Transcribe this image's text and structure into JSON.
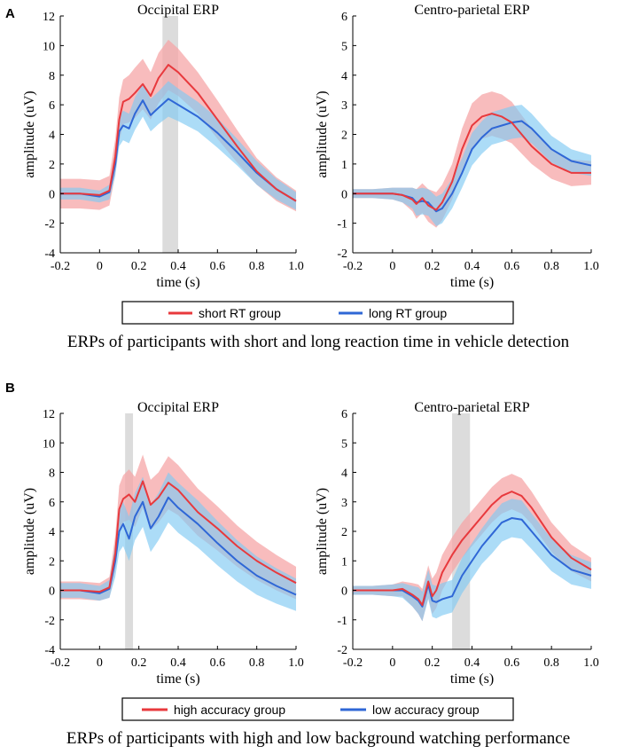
{
  "panels": [
    {
      "label": "A",
      "caption": "ERPs of participants with short and long reaction time in vehicle detection",
      "legend": [
        "short RT group",
        "long RT group"
      ],
      "colors": {
        "series1": "#e8393d",
        "band1": "#f6a5a7",
        "series2": "#2f67d6",
        "band2": "#7fcaf3",
        "highlight": "#dcdcdc"
      }
    },
    {
      "label": "B",
      "caption": "ERPs of participants with high and low background watching performance",
      "legend": [
        "high accuracy group",
        "low accuracy group"
      ],
      "colors": {
        "series1": "#e8393d",
        "band1": "#f6a5a7",
        "series2": "#2f67d6",
        "band2": "#7fcaf3",
        "highlight": "#dcdcdc"
      }
    }
  ],
  "chart_data": [
    {
      "type": "line",
      "title": "Occipital ERP",
      "xlabel": "time (s)",
      "ylabel": "amplitude (uV)",
      "xlim": [
        -0.2,
        1.0
      ],
      "ylim": [
        -4,
        12
      ],
      "xticks": [
        "-0.2",
        "0",
        "0.2",
        "0.4",
        "0.6",
        "0.8",
        "1.0"
      ],
      "yticks": [
        "-4",
        "-2",
        "0",
        "2",
        "4",
        "6",
        "8",
        "10",
        "12"
      ],
      "highlight": [
        0.32,
        0.4
      ],
      "x": [
        -0.2,
        -0.1,
        0,
        0.05,
        0.08,
        0.1,
        0.12,
        0.15,
        0.18,
        0.22,
        0.26,
        0.3,
        0.35,
        0.4,
        0.5,
        0.6,
        0.7,
        0.8,
        0.9,
        1.0
      ],
      "series": [
        {
          "name": "short RT group",
          "values": [
            0,
            0,
            -0.1,
            0.2,
            2.5,
            5.0,
            6.2,
            6.4,
            6.8,
            7.4,
            6.6,
            7.8,
            8.7,
            8.2,
            6.8,
            5.0,
            3.2,
            1.5,
            0.3,
            -0.5
          ],
          "band": [
            1.0,
            1.0,
            1.0,
            1.0,
            1.2,
            1.5,
            1.5,
            1.6,
            1.7,
            1.7,
            1.6,
            1.7,
            1.7,
            1.6,
            1.4,
            1.3,
            1.1,
            0.9,
            0.8,
            0.7
          ]
        },
        {
          "name": "long RT group",
          "values": [
            0,
            0,
            -0.2,
            0.1,
            2.0,
            4.2,
            4.6,
            4.4,
            5.4,
            6.3,
            5.3,
            5.8,
            6.4,
            6.0,
            5.2,
            4.1,
            2.8,
            1.4,
            0.3,
            -0.5
          ],
          "band": [
            0.4,
            0.4,
            0.4,
            0.5,
            0.8,
            1.0,
            1.0,
            1.0,
            1.1,
            1.1,
            1.1,
            1.1,
            1.2,
            1.1,
            1.0,
            1.0,
            0.9,
            0.8,
            0.7,
            0.6
          ]
        }
      ]
    },
    {
      "type": "line",
      "title": "Centro-parietal ERP",
      "xlabel": "time (s)",
      "ylabel": "amplitude (uV)",
      "xlim": [
        -0.2,
        1.0
      ],
      "ylim": [
        -2,
        6
      ],
      "xticks": [
        "-0.2",
        "0",
        "0.2",
        "0.4",
        "0.6",
        "0.8",
        "1.0"
      ],
      "yticks": [
        "-2",
        "-1",
        "0",
        "1",
        "2",
        "3",
        "4",
        "5",
        "6"
      ],
      "highlight": null,
      "x": [
        -0.2,
        -0.1,
        0,
        0.05,
        0.1,
        0.12,
        0.15,
        0.18,
        0.22,
        0.25,
        0.3,
        0.35,
        0.4,
        0.45,
        0.5,
        0.55,
        0.6,
        0.65,
        0.7,
        0.8,
        0.9,
        1.0
      ],
      "series": [
        {
          "name": "short RT group",
          "values": [
            0,
            0,
            0,
            -0.05,
            -0.2,
            -0.35,
            -0.15,
            -0.4,
            -0.55,
            -0.3,
            0.4,
            1.5,
            2.3,
            2.6,
            2.7,
            2.6,
            2.4,
            2.0,
            1.6,
            1.0,
            0.7,
            0.7
          ],
          "band": [
            0.15,
            0.15,
            0.2,
            0.25,
            0.4,
            0.5,
            0.5,
            0.55,
            0.6,
            0.6,
            0.6,
            0.7,
            0.75,
            0.75,
            0.75,
            0.75,
            0.7,
            0.65,
            0.6,
            0.5,
            0.45,
            0.4
          ]
        },
        {
          "name": "long RT group",
          "values": [
            0,
            0,
            0,
            -0.05,
            -0.15,
            -0.3,
            -0.25,
            -0.3,
            -0.6,
            -0.5,
            0.0,
            0.7,
            1.5,
            1.9,
            2.2,
            2.3,
            2.4,
            2.45,
            2.2,
            1.5,
            1.1,
            0.95
          ],
          "band": [
            0.15,
            0.15,
            0.2,
            0.25,
            0.35,
            0.45,
            0.45,
            0.45,
            0.5,
            0.5,
            0.5,
            0.5,
            0.55,
            0.55,
            0.55,
            0.55,
            0.55,
            0.55,
            0.5,
            0.45,
            0.4,
            0.35
          ]
        }
      ]
    },
    {
      "type": "line",
      "title": "Occipital ERP",
      "xlabel": "time (s)",
      "ylabel": "amplitude (uV)",
      "xlim": [
        -0.2,
        1.0
      ],
      "ylim": [
        -4,
        12
      ],
      "xticks": [
        "-0.2",
        "0",
        "0.2",
        "0.4",
        "0.6",
        "0.8",
        "1.0"
      ],
      "yticks": [
        "-4",
        "-2",
        "0",
        "2",
        "4",
        "6",
        "8",
        "10",
        "12"
      ],
      "highlight": [
        0.13,
        0.17
      ],
      "x": [
        -0.2,
        -0.1,
        0,
        0.05,
        0.08,
        0.1,
        0.12,
        0.15,
        0.18,
        0.22,
        0.26,
        0.3,
        0.35,
        0.4,
        0.5,
        0.6,
        0.7,
        0.8,
        0.9,
        1.0
      ],
      "series": [
        {
          "name": "high accuracy group",
          "values": [
            0,
            0,
            -0.1,
            0.2,
            2.5,
            5.5,
            6.2,
            6.5,
            6.0,
            7.4,
            5.8,
            6.3,
            7.3,
            6.8,
            5.3,
            4.2,
            3.0,
            2.0,
            1.2,
            0.5
          ],
          "band": [
            0.6,
            0.6,
            0.6,
            0.7,
            1.2,
            1.6,
            1.6,
            1.7,
            1.7,
            1.8,
            1.7,
            1.7,
            1.8,
            1.7,
            1.6,
            1.5,
            1.4,
            1.3,
            1.2,
            1.1
          ]
        },
        {
          "name": "low accuracy group",
          "values": [
            0,
            0,
            -0.2,
            0.1,
            2.0,
            4.0,
            4.5,
            3.5,
            5.0,
            6.0,
            4.2,
            5.0,
            6.3,
            5.6,
            4.5,
            3.2,
            2.0,
            1.0,
            0.3,
            -0.3
          ],
          "band": [
            0.5,
            0.5,
            0.5,
            0.6,
            1.1,
            1.4,
            1.5,
            1.5,
            1.6,
            1.7,
            1.6,
            1.6,
            1.7,
            1.7,
            1.6,
            1.5,
            1.4,
            1.3,
            1.2,
            1.1
          ]
        }
      ]
    },
    {
      "type": "line",
      "title": "Centro-parietal ERP",
      "xlabel": "time (s)",
      "ylabel": "amplitude (uV)",
      "xlim": [
        -0.2,
        1.0
      ],
      "ylim": [
        -2,
        6
      ],
      "xticks": [
        "-0.2",
        "0",
        "0.2",
        "0.4",
        "0.6",
        "0.8",
        "1.0"
      ],
      "yticks": [
        "-2",
        "-1",
        "0",
        "1",
        "2",
        "3",
        "4",
        "5",
        "6"
      ],
      "highlight": [
        0.3,
        0.39
      ],
      "x": [
        -0.2,
        -0.1,
        0,
        0.05,
        0.1,
        0.13,
        0.15,
        0.18,
        0.2,
        0.22,
        0.25,
        0.3,
        0.35,
        0.4,
        0.45,
        0.5,
        0.55,
        0.6,
        0.65,
        0.7,
        0.8,
        0.9,
        1.0
      ],
      "series": [
        {
          "name": "high accuracy group",
          "values": [
            0,
            0,
            0,
            0.05,
            -0.15,
            -0.3,
            -0.5,
            0.3,
            -0.2,
            0.0,
            0.6,
            1.2,
            1.7,
            2.1,
            2.5,
            2.9,
            3.2,
            3.35,
            3.2,
            2.8,
            1.8,
            1.1,
            0.7
          ],
          "band": [
            0.15,
            0.15,
            0.2,
            0.25,
            0.4,
            0.5,
            0.55,
            0.55,
            0.6,
            0.6,
            0.6,
            0.6,
            0.6,
            0.6,
            0.6,
            0.6,
            0.6,
            0.6,
            0.6,
            0.55,
            0.5,
            0.45,
            0.4
          ]
        },
        {
          "name": "low accuracy group",
          "values": [
            0,
            0,
            0,
            0.0,
            -0.2,
            -0.35,
            -0.55,
            0.2,
            -0.35,
            -0.4,
            -0.3,
            -0.2,
            0.5,
            1.0,
            1.5,
            1.9,
            2.3,
            2.45,
            2.4,
            2.0,
            1.2,
            0.7,
            0.5
          ],
          "band": [
            0.15,
            0.15,
            0.2,
            0.25,
            0.35,
            0.45,
            0.5,
            0.5,
            0.55,
            0.55,
            0.55,
            0.55,
            0.6,
            0.6,
            0.6,
            0.65,
            0.65,
            0.65,
            0.65,
            0.6,
            0.55,
            0.5,
            0.45
          ]
        }
      ]
    }
  ]
}
